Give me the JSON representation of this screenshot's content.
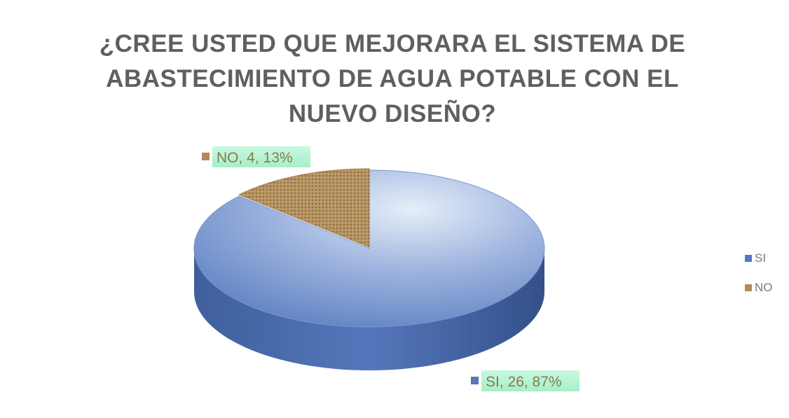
{
  "chart_data": {
    "type": "pie",
    "title": "¿CREE USTED QUE MEJORARA EL SISTEMA DE ABASTECIMIENTO DE AGUA POTABLE CON EL NUEVO DISEÑO?",
    "title_lines": [
      "¿CREE USTED QUE MEJORARA EL SISTEMA DE",
      "ABASTECIMIENTO DE AGUA POTABLE CON EL",
      "NUEVO DISEÑO?"
    ],
    "categories": [
      "SI",
      "NO"
    ],
    "values": [
      26,
      4
    ],
    "percentages": [
      87,
      13
    ],
    "data_labels": [
      "SI, 26, 87%",
      "NO, 4, 13%"
    ],
    "legend": {
      "position": "right",
      "entries": [
        "SI",
        "NO"
      ]
    },
    "colors": {
      "SI": "#5577bb",
      "NO": "#b08a55",
      "label_background": "#b9f5d6",
      "label_text": "#8a7a4a",
      "title": "#5f5f5f"
    },
    "style": "3d-pie"
  }
}
